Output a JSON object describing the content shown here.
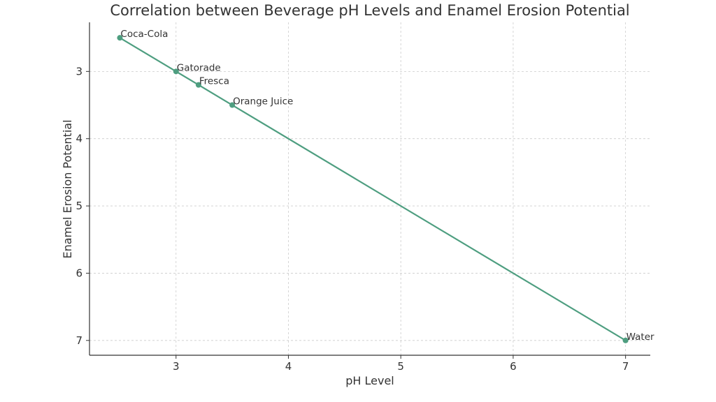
{
  "chart_data": {
    "type": "line",
    "title": "Correlation between Beverage pH Levels and Enamel Erosion Potential",
    "xlabel": "pH Level",
    "ylabel": "Enamel Erosion Potential",
    "xlim": [
      2.23,
      7.22
    ],
    "ylim": [
      2.27,
      7.22
    ],
    "y_inverted": true,
    "xticks": [
      3,
      4,
      5,
      6,
      7
    ],
    "yticks": [
      3,
      4,
      5,
      6,
      7
    ],
    "grid": true,
    "legend": "none",
    "series": [
      {
        "color": "#4e9e80",
        "points": [
          {
            "label": "Coca-Cola",
            "x": 2.5,
            "y": 2.5
          },
          {
            "label": "Gatorade",
            "x": 3.0,
            "y": 3.0
          },
          {
            "label": "Fresca",
            "x": 3.2,
            "y": 3.2
          },
          {
            "label": "Orange Juice",
            "x": 3.5,
            "y": 3.5
          },
          {
            "label": "Water",
            "x": 7.0,
            "y": 7.0
          }
        ]
      }
    ]
  }
}
